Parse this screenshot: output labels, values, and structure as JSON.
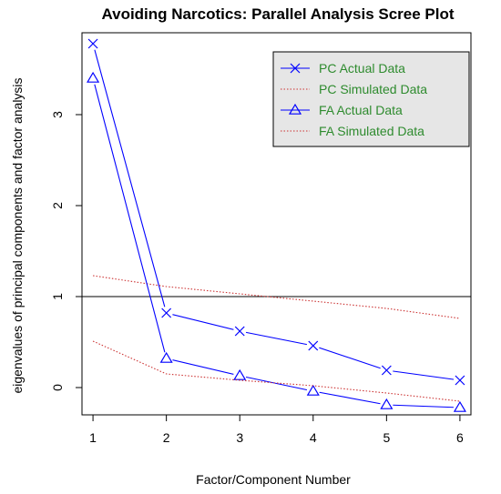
{
  "chart_data": {
    "type": "line",
    "title": "Avoiding Narcotics: Parallel Analysis Scree Plot",
    "xlabel": "Factor/Component Number",
    "ylabel": "eigenvalues of principal components and factor analysis",
    "x": [
      1,
      2,
      3,
      4,
      5,
      6
    ],
    "xlim": [
      0.85,
      6.15
    ],
    "ylim": [
      -0.3,
      3.9
    ],
    "x_ticks": [
      "1",
      "2",
      "3",
      "4",
      "5",
      "6"
    ],
    "y_ticks": [
      "0",
      "1",
      "2",
      "3"
    ],
    "reference_line_y": 1,
    "legend_position": "top-right",
    "series": [
      {
        "name": "PC  Actual Data",
        "values": [
          3.78,
          0.82,
          0.62,
          0.46,
          0.19,
          0.08
        ],
        "color": "#0000ff",
        "style": "solid",
        "marker": "x"
      },
      {
        "name": " PC  Simulated Data",
        "values": [
          1.23,
          1.11,
          1.03,
          0.95,
          0.87,
          0.76
        ],
        "color": "#cc3333",
        "style": "dotted",
        "marker": "none"
      },
      {
        "name": "FA  Actual Data",
        "values": [
          3.4,
          0.32,
          0.13,
          -0.04,
          -0.19,
          -0.22
        ],
        "color": "#0000ff",
        "style": "solid",
        "marker": "triangle"
      },
      {
        "name": " FA  Simulated Data",
        "values": [
          0.51,
          0.15,
          0.08,
          0.02,
          -0.06,
          -0.15
        ],
        "color": "#cc3333",
        "style": "dotted",
        "marker": "none"
      }
    ]
  }
}
